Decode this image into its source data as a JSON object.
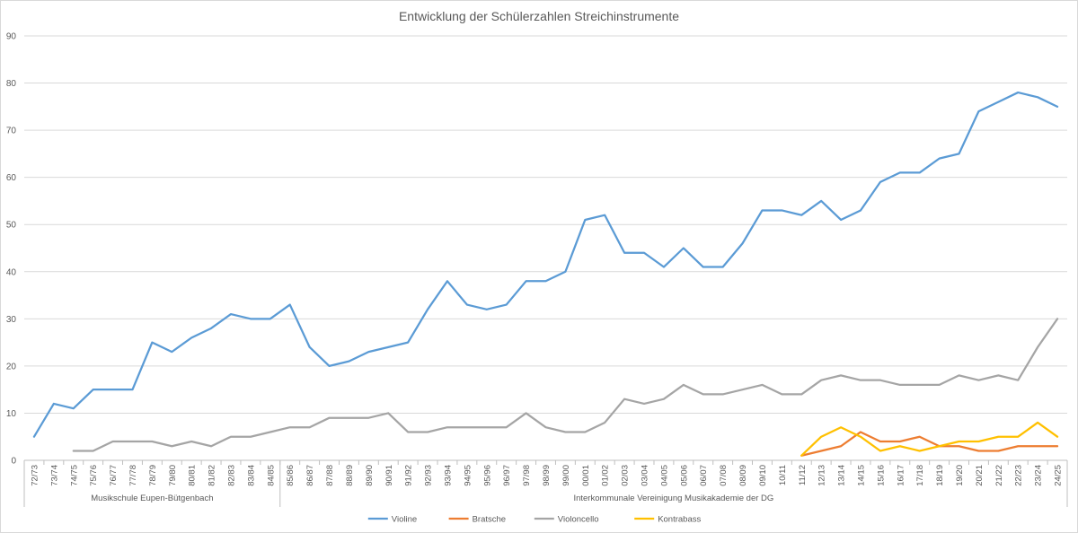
{
  "chart_data": {
    "type": "line",
    "title": "Entwicklung der Schülerzahlen Streichinstrumente",
    "xlabel": "",
    "ylabel": "",
    "ylim": [
      0,
      90
    ],
    "yticks": [
      0,
      10,
      20,
      30,
      40,
      50,
      60,
      70,
      80,
      90
    ],
    "grid": true,
    "legend_position": "bottom",
    "categories": [
      "72/73",
      "73/74",
      "74/75",
      "75/76",
      "76/77",
      "77/78",
      "78/79",
      "79/80",
      "80/81",
      "81/82",
      "82/83",
      "83/84",
      "84/85",
      "85/86",
      "86/87",
      "87/88",
      "88/89",
      "89/90",
      "90/91",
      "91/92",
      "92/93",
      "93/94",
      "94/95",
      "95/96",
      "96/97",
      "97/98",
      "98/99",
      "99/00",
      "00/01",
      "01/02",
      "02/03",
      "03/04",
      "04/05",
      "05/06",
      "06/07",
      "07/08",
      "08/09",
      "09/10",
      "10/11",
      "11/12",
      "12/13",
      "13/14",
      "14/15",
      "15/16",
      "16/17",
      "17/18",
      "18/19",
      "19/20",
      "20/21",
      "21/22",
      "22/23",
      "23/24",
      "24/25"
    ],
    "category_groups": [
      {
        "label": "Musikschule Eupen-Bütgenbach",
        "start": 0,
        "end": 12
      },
      {
        "label": "Interkommunale Vereinigung Musikakademie der DG",
        "start": 13,
        "end": 52
      }
    ],
    "series": [
      {
        "name": "Violine",
        "color": "#5B9BD5",
        "values": [
          5,
          12,
          11,
          15,
          15,
          15,
          25,
          23,
          26,
          28,
          31,
          30,
          30,
          33,
          24,
          20,
          21,
          23,
          24,
          25,
          32,
          38,
          33,
          32,
          33,
          38,
          38,
          40,
          51,
          52,
          44,
          44,
          41,
          45,
          41,
          41,
          46,
          53,
          53,
          52,
          55,
          51,
          53,
          59,
          61,
          61,
          64,
          65,
          74,
          76,
          78,
          77,
          75
        ]
      },
      {
        "name": "Bratsche",
        "color": "#ED7D31",
        "values": [
          null,
          null,
          null,
          null,
          null,
          null,
          null,
          null,
          null,
          null,
          null,
          null,
          null,
          null,
          null,
          null,
          null,
          null,
          null,
          null,
          null,
          null,
          null,
          null,
          null,
          null,
          null,
          null,
          null,
          null,
          null,
          null,
          null,
          null,
          null,
          null,
          null,
          null,
          null,
          1,
          2,
          3,
          6,
          4,
          4,
          5,
          3,
          3,
          2,
          2,
          3,
          3,
          3
        ]
      },
      {
        "name": "Violoncello",
        "color": "#A5A5A5",
        "values": [
          null,
          null,
          2,
          2,
          4,
          4,
          4,
          3,
          4,
          3,
          5,
          5,
          6,
          7,
          7,
          9,
          9,
          9,
          10,
          6,
          6,
          7,
          7,
          7,
          7,
          10,
          7,
          6,
          6,
          8,
          13,
          12,
          13,
          16,
          14,
          14,
          15,
          16,
          14,
          14,
          17,
          18,
          17,
          17,
          16,
          16,
          16,
          18,
          17,
          18,
          17,
          24,
          30
        ]
      },
      {
        "name": "Kontrabass",
        "color": "#FFC000",
        "values": [
          null,
          null,
          null,
          null,
          null,
          null,
          null,
          null,
          null,
          null,
          null,
          null,
          null,
          null,
          null,
          null,
          null,
          null,
          null,
          null,
          null,
          null,
          null,
          null,
          null,
          null,
          null,
          null,
          null,
          null,
          null,
          null,
          null,
          null,
          null,
          null,
          null,
          null,
          null,
          1,
          5,
          7,
          5,
          2,
          3,
          2,
          3,
          4,
          4,
          5,
          5,
          8,
          5
        ]
      }
    ]
  }
}
